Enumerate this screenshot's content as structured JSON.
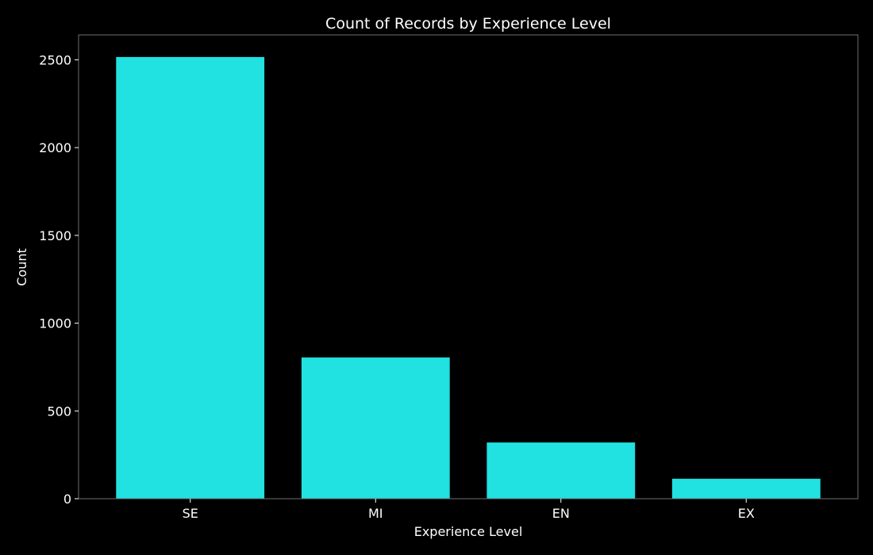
{
  "chart_data": {
    "type": "bar",
    "title": "Count of Records by Experience Level",
    "xlabel": "Experience Level",
    "ylabel": "Count",
    "categories": [
      "SE",
      "MI",
      "EN",
      "EX"
    ],
    "values": [
      2516,
      805,
      320,
      114
    ],
    "ylim": [
      0,
      2642
    ],
    "yticks": [
      0,
      500,
      1000,
      1500,
      2000,
      2500
    ],
    "grid": false,
    "legend": "none",
    "colors": {
      "background": "#000000",
      "bar": "#21e1e1",
      "text": "#ffffff",
      "frame": "#6e6e6e"
    }
  }
}
